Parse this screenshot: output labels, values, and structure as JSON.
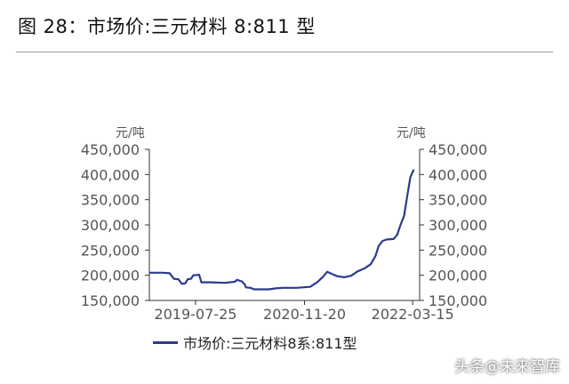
{
  "header": {
    "title": "图 28：市场价:三元材料 8:811 型"
  },
  "footer": {
    "watermark": "头条@未来智库"
  },
  "chart_data": {
    "type": "line",
    "left_unit": "元/吨",
    "right_unit": "元/吨",
    "ylim": [
      150000,
      450000
    ],
    "y_ticks": [
      150000,
      200000,
      250000,
      300000,
      350000,
      400000,
      450000
    ],
    "y_tick_labels": [
      "150,000",
      "200,000",
      "250,000",
      "300,000",
      "350,000",
      "400,000",
      "450,000"
    ],
    "x_range": [
      "2019-01-01",
      "2022-04-15"
    ],
    "x_ticks": [
      "2019-07-25",
      "2020-11-20",
      "2022-03-15"
    ],
    "grid": false,
    "legend_position": "bottom",
    "color": "#2b3a8f",
    "series": [
      {
        "name": "市场价:三元材料8系:811型",
        "points": [
          [
            "2019-01-01",
            205000
          ],
          [
            "2019-03-01",
            205000
          ],
          [
            "2019-04-01",
            204000
          ],
          [
            "2019-04-20",
            193000
          ],
          [
            "2019-05-10",
            192000
          ],
          [
            "2019-05-25",
            183000
          ],
          [
            "2019-06-10",
            184000
          ],
          [
            "2019-06-20",
            192000
          ],
          [
            "2019-07-05",
            193000
          ],
          [
            "2019-07-15",
            200000
          ],
          [
            "2019-08-10",
            201000
          ],
          [
            "2019-08-20",
            186000
          ],
          [
            "2019-10-01",
            186000
          ],
          [
            "2019-12-01",
            185000
          ],
          [
            "2020-01-15",
            187000
          ],
          [
            "2020-01-25",
            191000
          ],
          [
            "2020-02-15",
            188000
          ],
          [
            "2020-02-28",
            182000
          ],
          [
            "2020-03-05",
            176000
          ],
          [
            "2020-03-25",
            175000
          ],
          [
            "2020-04-10",
            172000
          ],
          [
            "2020-06-15",
            172000
          ],
          [
            "2020-07-15",
            174000
          ],
          [
            "2020-08-15",
            175000
          ],
          [
            "2020-10-15",
            175000
          ],
          [
            "2020-12-15",
            177000
          ],
          [
            "2021-01-15",
            186000
          ],
          [
            "2021-02-10",
            197000
          ],
          [
            "2021-03-01",
            207000
          ],
          [
            "2021-03-20",
            203000
          ],
          [
            "2021-04-15",
            198000
          ],
          [
            "2021-05-15",
            196000
          ],
          [
            "2021-06-15",
            199000
          ],
          [
            "2021-07-15",
            208000
          ],
          [
            "2021-08-15",
            214000
          ],
          [
            "2021-09-10",
            222000
          ],
          [
            "2021-10-01",
            238000
          ],
          [
            "2021-10-15",
            258000
          ],
          [
            "2021-11-01",
            268000
          ],
          [
            "2021-11-20",
            271000
          ],
          [
            "2021-12-20",
            272000
          ],
          [
            "2022-01-05",
            280000
          ],
          [
            "2022-01-20",
            300000
          ],
          [
            "2022-02-05",
            318000
          ],
          [
            "2022-02-20",
            360000
          ],
          [
            "2022-03-05",
            395000
          ],
          [
            "2022-03-20",
            410000
          ]
        ]
      }
    ]
  }
}
